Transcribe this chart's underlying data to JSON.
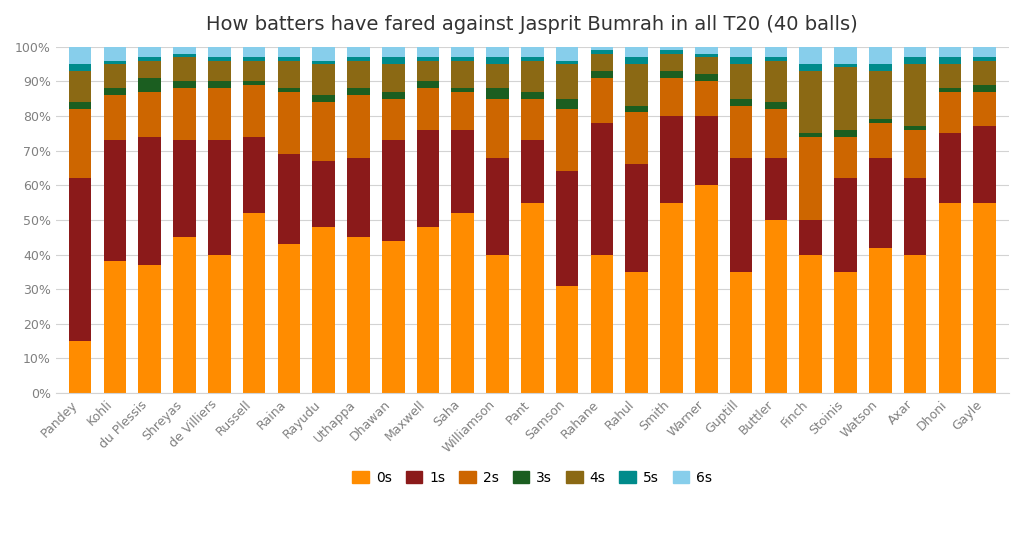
{
  "title": "How batters have fared against Jasprit Bumrah in all T20 (40 balls)",
  "categories": [
    "Pandey",
    "Kohli",
    "du Plessis",
    "Shreyas",
    "de Villiers",
    "Russell",
    "Raina",
    "Rayudu",
    "Uthappa",
    "Dhawan",
    "Maxwell",
    "Saha",
    "Williamson",
    "Pant",
    "Samson",
    "Rahane",
    "Rahul",
    "Smith",
    "Warner",
    "Guptill",
    "Buttler",
    "Finch",
    "Stoinis",
    "Watson",
    "Axar",
    "Dhoni",
    "Gayle"
  ],
  "series": {
    "0s": [
      15,
      38,
      37,
      45,
      40,
      52,
      43,
      48,
      45,
      44,
      48,
      52,
      40,
      55,
      31,
      40,
      35,
      55,
      60,
      35,
      50,
      40,
      35,
      42,
      40,
      55,
      55
    ],
    "1s": [
      47,
      35,
      37,
      28,
      33,
      22,
      26,
      19,
      23,
      29,
      28,
      24,
      28,
      18,
      33,
      38,
      31,
      25,
      20,
      33,
      18,
      10,
      27,
      26,
      22,
      20,
      22
    ],
    "2s": [
      20,
      13,
      13,
      15,
      15,
      15,
      18,
      17,
      18,
      12,
      12,
      11,
      17,
      12,
      18,
      13,
      15,
      11,
      10,
      15,
      14,
      24,
      12,
      10,
      14,
      12,
      10
    ],
    "3s": [
      2,
      2,
      4,
      2,
      2,
      1,
      1,
      2,
      2,
      2,
      2,
      1,
      3,
      2,
      3,
      2,
      2,
      2,
      2,
      2,
      2,
      1,
      2,
      1,
      1,
      1,
      2
    ],
    "4s": [
      9,
      7,
      5,
      7,
      6,
      6,
      8,
      9,
      8,
      8,
      6,
      8,
      7,
      9,
      10,
      5,
      12,
      5,
      5,
      10,
      12,
      18,
      18,
      14,
      18,
      7,
      7
    ],
    "5s": [
      2,
      1,
      1,
      1,
      1,
      1,
      1,
      1,
      1,
      2,
      1,
      1,
      2,
      1,
      1,
      1,
      2,
      1,
      1,
      2,
      1,
      2,
      1,
      2,
      2,
      2,
      1
    ],
    "6s": [
      5,
      4,
      3,
      2,
      3,
      3,
      3,
      4,
      3,
      3,
      3,
      3,
      3,
      3,
      4,
      1,
      3,
      1,
      2,
      3,
      3,
      5,
      5,
      5,
      3,
      3,
      3
    ]
  },
  "colors": {
    "0s": "#FF8C00",
    "1s": "#8B1A1A",
    "2s": "#CD6600",
    "3s": "#1B5E20",
    "4s": "#8B6914",
    "5s": "#008B8B",
    "6s": "#87CEEB"
  },
  "legend_labels": [
    "0s",
    "1s",
    "2s",
    "3s",
    "4s",
    "5s",
    "6s"
  ],
  "ylim": [
    0,
    100
  ],
  "ytick_labels": [
    "0%",
    "10%",
    "20%",
    "30%",
    "40%",
    "50%",
    "60%",
    "70%",
    "80%",
    "90%",
    "100%"
  ]
}
